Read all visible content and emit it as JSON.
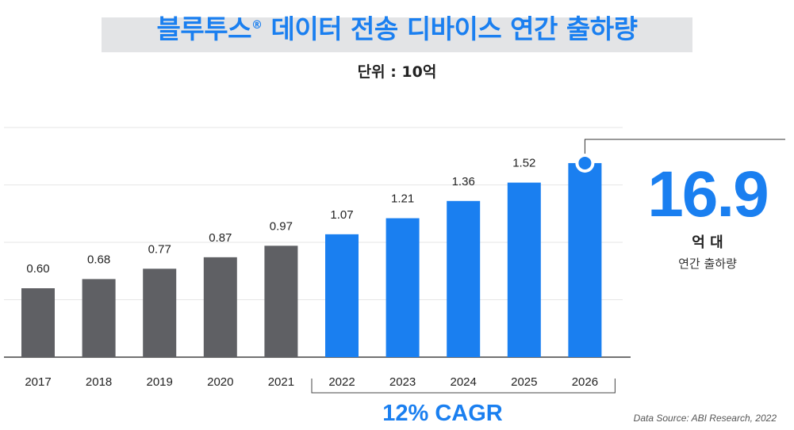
{
  "title": "블루투스 데이터 전송 디바이스 연간 출하량",
  "title_before_mark": "블루투스",
  "title_mark": "®",
  "title_after_mark": " 데이터 전송 디바이스 연간 출하량",
  "subtitle": "단위 : 10억",
  "highlight": {
    "value": "16.9",
    "unit": "억 대",
    "caption": "연간 출하량"
  },
  "cagr_label": "12% CAGR",
  "source": "Data Source: ABI Research, 2022",
  "colors": {
    "accent": "#1a7ff0",
    "historical": "#5f6064",
    "title_band": "#e3e4e6"
  },
  "chart_data": {
    "type": "bar",
    "title": "블루투스 데이터 전송 디바이스 연간 출하량",
    "ylabel": "",
    "xlabel": "",
    "unit": "10억",
    "categories": [
      "2017",
      "2018",
      "2019",
      "2020",
      "2021",
      "2022",
      "2023",
      "2024",
      "2025",
      "2026"
    ],
    "values": [
      0.6,
      0.68,
      0.77,
      0.87,
      0.97,
      1.07,
      1.21,
      1.36,
      1.52,
      1.69
    ],
    "value_labels": [
      "0.60",
      "0.68",
      "0.77",
      "0.87",
      "0.97",
      "1.07",
      "1.21",
      "1.36",
      "1.52",
      ""
    ],
    "forecast_from": "2022",
    "ylim": [
      0,
      2.0
    ],
    "grid": true,
    "legend": "none"
  }
}
